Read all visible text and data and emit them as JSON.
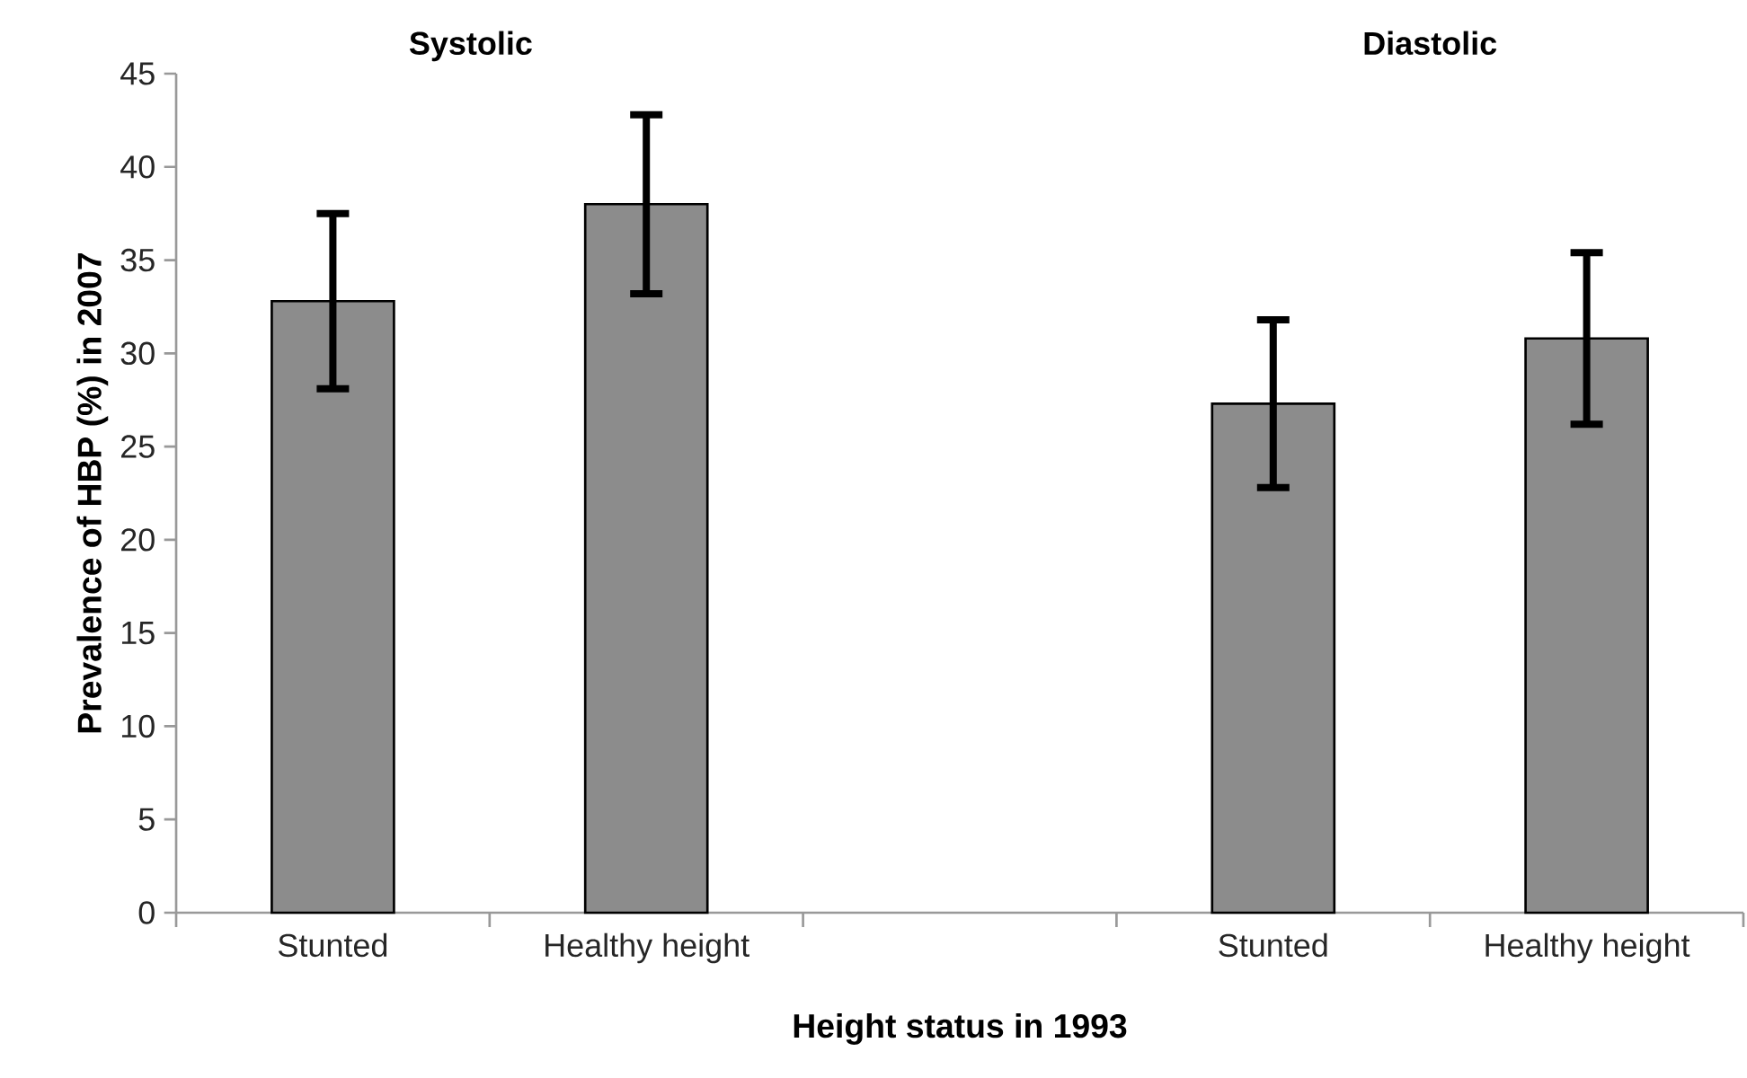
{
  "chart_data": {
    "type": "bar",
    "categories": [
      "Stunted",
      "Healthy height",
      null,
      "Stunted",
      "Healthy height"
    ],
    "values": [
      32.8,
      38.0,
      null,
      27.3,
      30.8
    ],
    "errors": [
      4.7,
      4.8,
      null,
      4.5,
      4.6
    ],
    "color": "#8c8c8c",
    "xlabel": "Height status in 1993",
    "ylabel": "Prevalence of HBP (%) in 2007",
    "ylim": [
      0,
      45
    ],
    "yticks": [
      0,
      5,
      10,
      15,
      20,
      25,
      30,
      35,
      40,
      45
    ],
    "annotations": [
      "Systolic",
      "Diastolic"
    ]
  }
}
